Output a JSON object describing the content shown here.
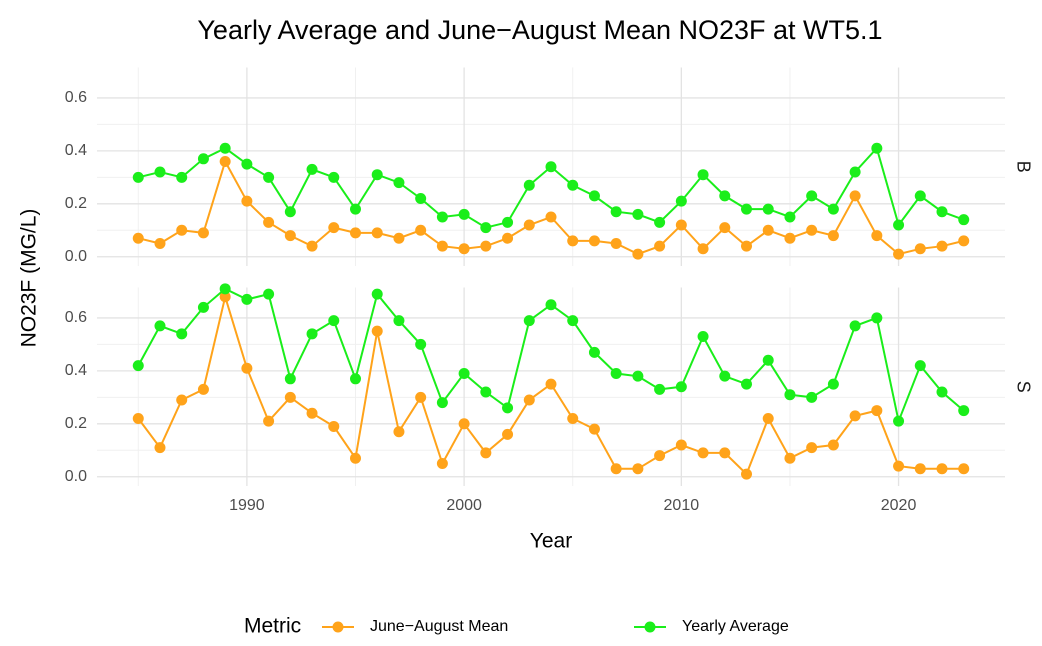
{
  "chart_data": {
    "type": "line",
    "title": "Yearly Average and June−August Mean NO23F at WT5.1",
    "x_label": "Year",
    "y_label": "NO23F  (MG/L)",
    "legend_title": "Metric",
    "legend": "bottom",
    "grid": true,
    "x": [
      1985,
      1986,
      1987,
      1988,
      1989,
      1990,
      1991,
      1992,
      1993,
      1994,
      1995,
      1996,
      1997,
      1998,
      1999,
      2000,
      2001,
      2002,
      2003,
      2004,
      2005,
      2006,
      2007,
      2008,
      2009,
      2010,
      2011,
      2012,
      2013,
      2014,
      2015,
      2016,
      2017,
      2018,
      2019,
      2020,
      2021,
      2022,
      2023
    ],
    "xlim": [
      1983.1,
      2024.9
    ],
    "xticks": [
      1990,
      2000,
      2010,
      2020
    ],
    "x_minor_ticks": [
      1985,
      1995,
      2005,
      2015
    ],
    "ylim": [
      -0.035,
      0.715
    ],
    "yticks": [
      {
        "value": 0,
        "label": "0.0"
      },
      0.2,
      0.4,
      0.6
    ],
    "y_minor_ticks": [
      0.1,
      0.3,
      0.5
    ],
    "series": [
      {
        "name": "June−August Mean",
        "color": "#ffa31a"
      },
      {
        "name": "Yearly Average",
        "color": "#1aee1a"
      }
    ],
    "facets": [
      {
        "label": "B",
        "values": [
          [
            0.07,
            0.05,
            0.1,
            0.09,
            0.36,
            0.21,
            0.13,
            0.08,
            0.04,
            0.11,
            0.09,
            0.09,
            0.07,
            0.1,
            0.04,
            0.03,
            0.04,
            0.07,
            0.12,
            0.15,
            0.06,
            0.06,
            0.05,
            0.01,
            0.04,
            0.12,
            0.03,
            0.11,
            0.04,
            0.1,
            0.07,
            0.1,
            0.08,
            0.23,
            0.08,
            0.01,
            0.03,
            0.04,
            0.06
          ],
          [
            0.3,
            0.32,
            0.3,
            0.37,
            0.41,
            0.35,
            0.3,
            0.17,
            0.33,
            0.3,
            0.18,
            0.31,
            0.28,
            0.22,
            0.15,
            0.16,
            0.11,
            0.13,
            0.27,
            0.34,
            0.27,
            0.23,
            0.17,
            0.16,
            0.13,
            0.21,
            0.31,
            0.23,
            0.18,
            0.18,
            0.15,
            0.23,
            0.18,
            0.32,
            0.41,
            0.12,
            0.23,
            0.17,
            0.14
          ]
        ]
      },
      {
        "label": "S",
        "values": [
          [
            0.22,
            0.11,
            0.29,
            0.33,
            0.68,
            0.41,
            0.21,
            0.3,
            0.24,
            0.19,
            0.07,
            0.55,
            0.17,
            0.3,
            0.05,
            0.2,
            0.09,
            0.16,
            0.29,
            0.35,
            0.22,
            0.18,
            0.03,
            0.03,
            0.08,
            0.12,
            0.09,
            0.09,
            0.01,
            0.22,
            0.07,
            0.11,
            0.12,
            0.23,
            0.25,
            0.04,
            0.03,
            0.03,
            0.03
          ],
          [
            0.42,
            0.57,
            0.54,
            0.64,
            0.71,
            0.67,
            0.69,
            0.37,
            0.54,
            0.59,
            0.37,
            0.69,
            0.59,
            0.5,
            0.28,
            0.39,
            0.32,
            0.26,
            0.59,
            0.65,
            0.59,
            0.47,
            0.39,
            0.38,
            0.33,
            0.34,
            0.53,
            0.38,
            0.35,
            0.44,
            0.31,
            0.3,
            0.35,
            0.57,
            0.6,
            0.21,
            0.42,
            0.32,
            0.25
          ]
        ]
      }
    ]
  }
}
